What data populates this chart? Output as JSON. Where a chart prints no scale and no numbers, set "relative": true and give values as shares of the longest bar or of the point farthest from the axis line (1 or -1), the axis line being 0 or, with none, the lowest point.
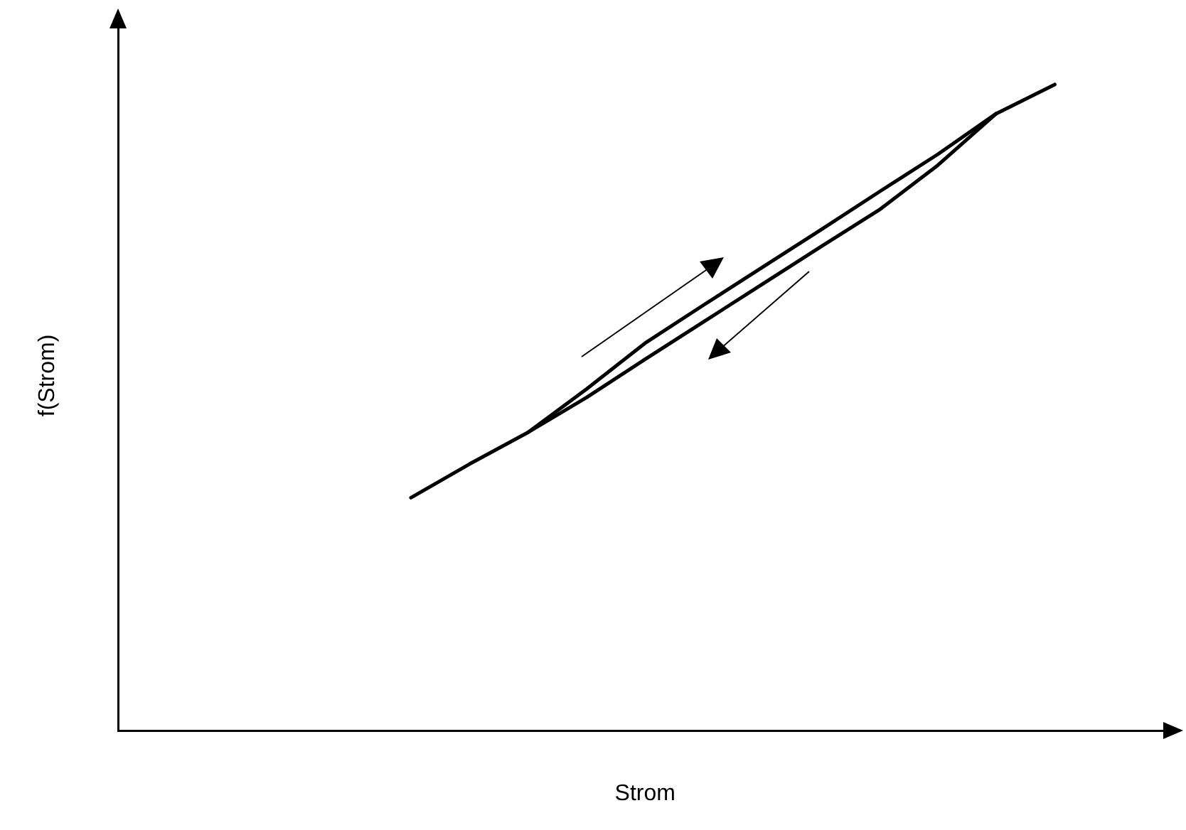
{
  "chart_data": {
    "type": "line",
    "relative": true,
    "xlabel": "Strom",
    "ylabel": "f(Strom)",
    "grid": false,
    "legend": false,
    "marker": "none",
    "line_style": "solid",
    "categories": [
      null,
      null,
      null,
      null,
      null,
      null,
      null,
      null,
      null,
      null,
      null,
      null,
      null,
      null,
      null,
      null,
      null,
      null,
      null
    ],
    "series": [
      {
        "color": "#000000",
        "values": [
          null,
          null,
          null,
          null,
          null,
          0.361,
          0.413,
          0.462,
          0.529,
          0.6,
          0.659,
          0.717,
          0.775,
          0.834,
          0.892,
          0.955,
          1.0,
          null,
          null
        ]
      },
      {
        "color": "#000000",
        "values": [
          null,
          null,
          null,
          null,
          null,
          null,
          null,
          0.462,
          0.516,
          0.575,
          0.633,
          0.691,
          0.749,
          0.806,
          0.875,
          0.955,
          null,
          null,
          null
        ]
      }
    ]
  }
}
